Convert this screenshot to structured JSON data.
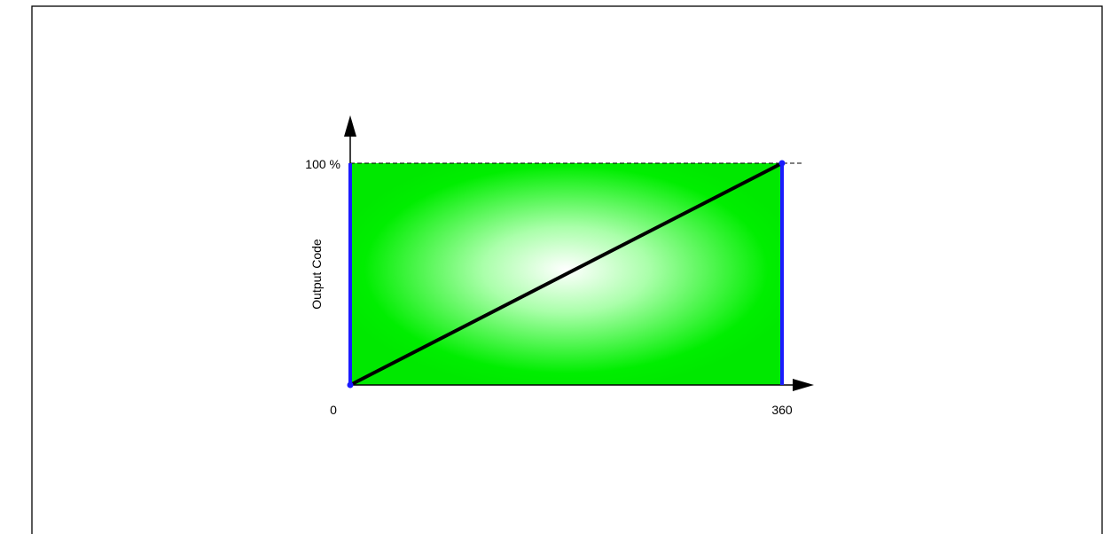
{
  "chart_data": {
    "type": "line",
    "x": [
      0,
      360
    ],
    "y": [
      0,
      100
    ],
    "xlim": [
      0,
      360
    ],
    "ylim": [
      0,
      100
    ],
    "x_tick_labels": [
      "0",
      "360"
    ],
    "y_tick_labels": [
      "0",
      "100 %"
    ],
    "ylabel": "Output Code",
    "xlabel": "",
    "title": "",
    "grid": false,
    "legend": "none",
    "colors": {
      "fill_center": "#ffffff",
      "fill_edge": "#00ee00",
      "line": "#000000",
      "boundary": "#1a1aff",
      "frame": "#000000"
    }
  }
}
